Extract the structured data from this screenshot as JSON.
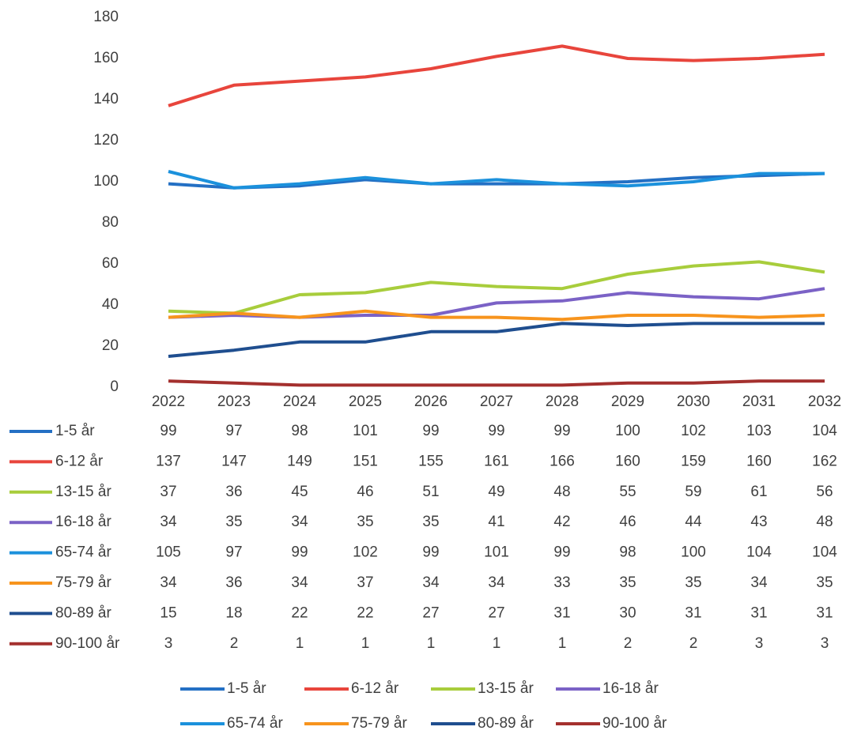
{
  "chart_data": {
    "type": "line",
    "categories": [
      "2022",
      "2023",
      "2024",
      "2025",
      "2026",
      "2027",
      "2028",
      "2029",
      "2030",
      "2031",
      "2032"
    ],
    "ylim": [
      0,
      180
    ],
    "yticks": [
      0,
      20,
      40,
      60,
      80,
      100,
      120,
      140,
      160,
      180
    ],
    "grid": false,
    "series": [
      {
        "name": "1-5 år",
        "color": "#2470c4",
        "values": [
          99,
          97,
          98,
          101,
          99,
          99,
          99,
          100,
          102,
          103,
          104
        ]
      },
      {
        "name": "6-12 år",
        "color": "#e8453c",
        "values": [
          137,
          147,
          149,
          151,
          155,
          161,
          166,
          160,
          159,
          160,
          162
        ]
      },
      {
        "name": "13-15 år",
        "color": "#a8cd3c",
        "values": [
          37,
          36,
          45,
          46,
          51,
          49,
          48,
          55,
          59,
          61,
          56
        ]
      },
      {
        "name": "16-18 år",
        "color": "#7b62c6",
        "values": [
          34,
          35,
          34,
          35,
          35,
          41,
          42,
          46,
          44,
          43,
          48
        ]
      },
      {
        "name": "65-74 år",
        "color": "#1b91dc",
        "values": [
          105,
          97,
          99,
          102,
          99,
          101,
          99,
          98,
          100,
          104,
          104
        ]
      },
      {
        "name": "75-79 år",
        "color": "#f7941d",
        "values": [
          34,
          36,
          34,
          37,
          34,
          34,
          33,
          35,
          35,
          34,
          35
        ]
      },
      {
        "name": "80-89 år",
        "color": "#1f4e8f",
        "values": [
          15,
          18,
          22,
          22,
          27,
          27,
          31,
          30,
          31,
          31,
          31
        ]
      },
      {
        "name": "90-100 år",
        "color": "#a4302e",
        "values": [
          3,
          2,
          1,
          1,
          1,
          1,
          1,
          2,
          2,
          3,
          3
        ]
      }
    ]
  }
}
